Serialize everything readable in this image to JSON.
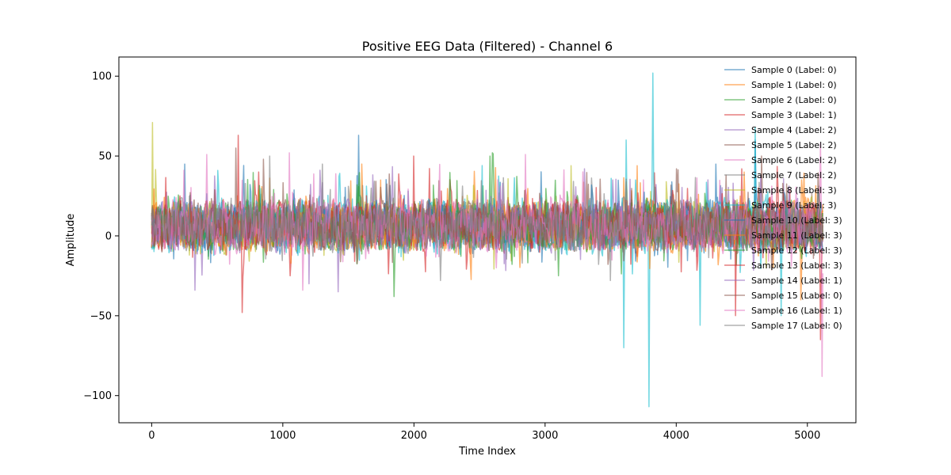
{
  "chart_data": {
    "type": "line",
    "title": "Positive EEG Data (Filtered) - Channel 6",
    "xlabel": "Time Index",
    "ylabel": "Amplitude",
    "xlim": [
      -250,
      5370
    ],
    "ylim": [
      -117,
      112
    ],
    "xticks": [
      0,
      1000,
      2000,
      3000,
      4000,
      5000
    ],
    "yticks": [
      -100,
      -50,
      0,
      50,
      100
    ],
    "ytick_labels": [
      "−100",
      "−50",
      "0",
      "50",
      "100"
    ],
    "n_points": 5120,
    "grid": false,
    "legend_position": "top-right",
    "series": [
      {
        "name": "Sample 0 (Label: 0)",
        "color": "#1f77b4",
        "amplitude": 16,
        "extremes": [
          [
            1580,
            63
          ],
          [
            4600,
            60
          ]
        ]
      },
      {
        "name": "Sample 1 (Label: 0)",
        "color": "#ff7f0e",
        "amplitude": 16,
        "extremes": [
          [
            3700,
            44
          ],
          [
            4950,
            -40
          ]
        ]
      },
      {
        "name": "Sample 2 (Label: 0)",
        "color": "#2ca02c",
        "amplitude": 15,
        "extremes": [
          [
            1850,
            -38
          ],
          [
            2600,
            52
          ]
        ]
      },
      {
        "name": "Sample 3 (Label: 1)",
        "color": "#d62728",
        "amplitude": 17,
        "extremes": [
          [
            660,
            63
          ],
          [
            690,
            -48
          ],
          [
            4450,
            -50
          ],
          [
            5100,
            -65
          ]
        ]
      },
      {
        "name": "Sample 4 (Label: 2)",
        "color": "#9467bd",
        "amplitude": 15,
        "extremes": [
          [
            330,
            -34
          ],
          [
            1420,
            -35
          ]
        ]
      },
      {
        "name": "Sample 5 (Label: 2)",
        "color": "#8c564b",
        "amplitude": 15,
        "extremes": [
          [
            640,
            55
          ],
          [
            4650,
            50
          ]
        ]
      },
      {
        "name": "Sample 6 (Label: 2)",
        "color": "#e377c2",
        "amplitude": 15,
        "extremes": [
          [
            420,
            51
          ],
          [
            1150,
            -34
          ],
          [
            2850,
            51
          ]
        ]
      },
      {
        "name": "Sample 7 (Label: 2)",
        "color": "#7f7f7f",
        "amplitude": 15,
        "extremes": [
          [
            1300,
            45
          ],
          [
            3500,
            -28
          ]
        ]
      },
      {
        "name": "Sample 8 (Label: 3)",
        "color": "#bcbd22",
        "amplitude": 16,
        "extremes": [
          [
            5,
            71
          ],
          [
            3200,
            44
          ]
        ]
      },
      {
        "name": "Sample 9 (Label: 3)",
        "color": "#17becf",
        "amplitude": 18,
        "extremes": [
          [
            3600,
            -70
          ],
          [
            3620,
            60
          ],
          [
            3790,
            -107
          ],
          [
            3820,
            102
          ],
          [
            4180,
            -56
          ],
          [
            4600,
            68
          ],
          [
            4800,
            -50
          ]
        ]
      },
      {
        "name": "Sample 10 (Label: 3)",
        "color": "#1f77b4",
        "amplitude": 15,
        "extremes": [
          [
            250,
            45
          ],
          [
            4300,
            45
          ]
        ]
      },
      {
        "name": "Sample 11 (Label: 3)",
        "color": "#ff7f0e",
        "amplitude": 15,
        "extremes": [
          [
            1600,
            45
          ],
          [
            4520,
            40
          ]
        ]
      },
      {
        "name": "Sample 12 (Label: 3)",
        "color": "#2ca02c",
        "amplitude": 15,
        "extremes": [
          [
            2580,
            50
          ],
          [
            3100,
            -25
          ]
        ]
      },
      {
        "name": "Sample 13 (Label: 3)",
        "color": "#d62728",
        "amplitude": 15,
        "extremes": [
          [
            2000,
            50
          ],
          [
            4500,
            42
          ]
        ]
      },
      {
        "name": "Sample 14 (Label: 1)",
        "color": "#9467bd",
        "amplitude": 15,
        "extremes": [
          [
            1200,
            -30
          ],
          [
            3300,
            42
          ]
        ]
      },
      {
        "name": "Sample 15 (Label: 0)",
        "color": "#8c564b",
        "amplitude": 15,
        "extremes": [
          [
            850,
            48
          ],
          [
            4000,
            42
          ]
        ]
      },
      {
        "name": "Sample 16 (Label: 1)",
        "color": "#e377c2",
        "amplitude": 16,
        "extremes": [
          [
            1050,
            52
          ],
          [
            5110,
            -88
          ],
          [
            5100,
            58
          ]
        ]
      },
      {
        "name": "Sample 17 (Label: 0)",
        "color": "#7f7f7f",
        "amplitude": 15,
        "extremes": [
          [
            900,
            50
          ],
          [
            2200,
            -28
          ]
        ]
      }
    ]
  }
}
